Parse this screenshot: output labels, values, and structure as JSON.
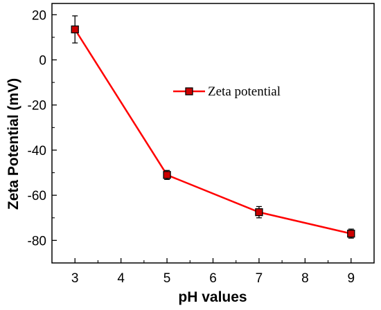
{
  "chart_data": {
    "type": "line",
    "title": "",
    "xlabel": "pH values",
    "ylabel": "Zeta Potential (mV)",
    "xlim": [
      2.5,
      9.5
    ],
    "ylim": [
      -90,
      25
    ],
    "x_ticks": [
      "3",
      "4",
      "5",
      "6",
      "7",
      "8",
      "9"
    ],
    "y_ticks": [
      "20",
      "0",
      "-20",
      "-40",
      "-60",
      "-80"
    ],
    "grid": false,
    "legend_position": "top-right",
    "series": [
      {
        "name": "Zeta potential",
        "color": "#ff0000",
        "marker_color": "#cc0000",
        "x": [
          3,
          5,
          7,
          9
        ],
        "y": [
          13.5,
          -51,
          -67.5,
          -77
        ],
        "error": [
          6,
          2,
          2.5,
          2
        ]
      }
    ]
  }
}
